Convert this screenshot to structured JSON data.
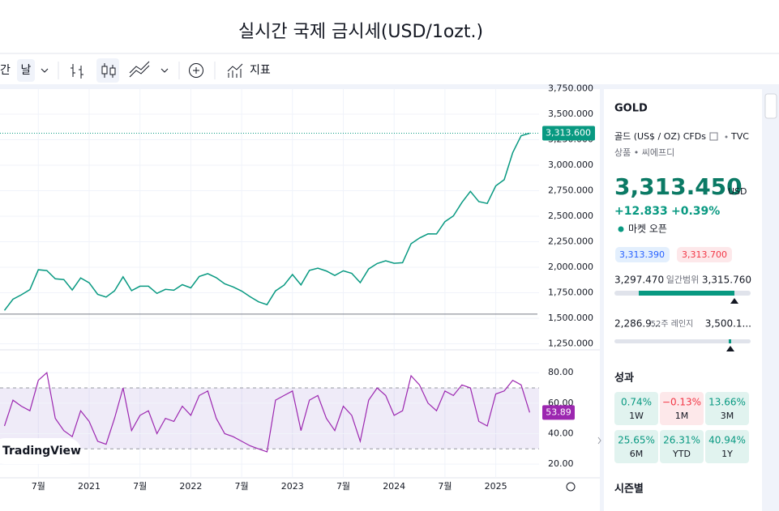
{
  "header": {
    "title": "실시간 국제 금시세(USD/1ozt.)"
  },
  "toolbar": {
    "interval_prefix": "간",
    "interval": "날",
    "indicators": "지표"
  },
  "chart_data": {
    "type": "line",
    "x": [
      "2020-03",
      "2020-04",
      "2020-05",
      "2020-06",
      "2020-07",
      "2020-08",
      "2020-09",
      "2020-10",
      "2020-11",
      "2020-12",
      "2021-01",
      "2021-02",
      "2021-03",
      "2021-04",
      "2021-05",
      "2021-06",
      "2021-07",
      "2021-08",
      "2021-09",
      "2021-10",
      "2021-11",
      "2021-12",
      "2022-01",
      "2022-02",
      "2022-03",
      "2022-04",
      "2022-05",
      "2022-06",
      "2022-07",
      "2022-08",
      "2022-09",
      "2022-10",
      "2022-11",
      "2022-12",
      "2023-01",
      "2023-02",
      "2023-03",
      "2023-04",
      "2023-05",
      "2023-06",
      "2023-07",
      "2023-08",
      "2023-09",
      "2023-10",
      "2023-11",
      "2023-12",
      "2024-01",
      "2024-02",
      "2024-03",
      "2024-04",
      "2024-05",
      "2024-06",
      "2024-07",
      "2024-08",
      "2024-09",
      "2024-10",
      "2024-11",
      "2024-12",
      "2025-01",
      "2025-02",
      "2025-03",
      "2025-04",
      "2025-05"
    ],
    "values": [
      1577,
      1686,
      1730,
      1781,
      1975,
      1967,
      1886,
      1879,
      1777,
      1895,
      1847,
      1734,
      1708,
      1769,
      1906,
      1770,
      1814,
      1814,
      1743,
      1783,
      1774,
      1829,
      1797,
      1909,
      1937,
      1897,
      1837,
      1807,
      1766,
      1711,
      1661,
      1633,
      1768,
      1824,
      1928,
      1827,
      1969,
      1990,
      1963,
      1919,
      1965,
      1940,
      1849,
      1983,
      2036,
      2063,
      2039,
      2044,
      2230,
      2286,
      2327,
      2326,
      2447,
      2503,
      2634,
      2744,
      2643,
      2625,
      2798,
      2858,
      3123,
      3289,
      3313.6
    ],
    "color": "#089981",
    "xticks": [
      {
        "value": "2020-07",
        "label": "7월"
      },
      {
        "value": "2021-01",
        "label": "2021"
      },
      {
        "value": "2021-07",
        "label": "7월"
      },
      {
        "value": "2022-01",
        "label": "2022"
      },
      {
        "value": "2022-07",
        "label": "7월"
      },
      {
        "value": "2023-01",
        "label": "2023"
      },
      {
        "value": "2023-07",
        "label": "7월"
      },
      {
        "value": "2024-01",
        "label": "2024"
      },
      {
        "value": "2024-07",
        "label": "7월"
      },
      {
        "value": "2025-01",
        "label": "2025"
      }
    ],
    "ylim": [
      1190,
      3786
    ],
    "yticks": [
      {
        "value": 1250,
        "label": "1,250.000"
      },
      {
        "value": 1500,
        "label": "1,500.000"
      },
      {
        "value": 1750,
        "label": "1,750.000"
      },
      {
        "value": 2000,
        "label": "2,000.000"
      },
      {
        "value": 2250,
        "label": "2,250.000"
      },
      {
        "value": 2500,
        "label": "2,500.000"
      },
      {
        "value": 2750,
        "label": "2,750.000"
      },
      {
        "value": 3000,
        "label": "3,000.000"
      },
      {
        "value": 3250,
        "label": "3,250.000"
      },
      {
        "value": 3500,
        "label": "3,500.000"
      },
      {
        "value": 3750,
        "label": "3,750.000"
      }
    ],
    "grid": true,
    "last_price": {
      "value": 3313.6,
      "label": "3,313.600"
    },
    "hline": 1540,
    "rsi": {
      "values": [
        45,
        62,
        58,
        55,
        75,
        80,
        50,
        42,
        38,
        55,
        48,
        35,
        33,
        50,
        70,
        42,
        52,
        55,
        40,
        50,
        48,
        58,
        52,
        65,
        68,
        50,
        40,
        38,
        35,
        32,
        30,
        28,
        62,
        65,
        68,
        42,
        62,
        65,
        50,
        42,
        58,
        52,
        35,
        62,
        70,
        65,
        52,
        55,
        78,
        72,
        60,
        55,
        68,
        65,
        72,
        70,
        48,
        45,
        66,
        68,
        75,
        72,
        53.89
      ],
      "color": "#9c27b0",
      "ylim": [
        11,
        95
      ],
      "yticks": [
        {
          "value": 20,
          "label": "20.00"
        },
        {
          "value": 40,
          "label": "40.00"
        },
        {
          "value": 60,
          "label": "60.00"
        },
        {
          "value": 80,
          "label": "80.00"
        }
      ],
      "band": [
        30,
        70
      ],
      "last": {
        "value": 53.89,
        "label": "53.89"
      }
    },
    "logo": "TradingView"
  },
  "panel": {
    "symbol": "GOLD",
    "description": "골드 (US$ / OZ) CFDs",
    "exchange": "TVC",
    "category": "상품 • 씨에프디",
    "price": "3,313.450",
    "currency": "USD",
    "change": "+12.833",
    "change_pct": "+0.39%",
    "status": "마켓 오픈",
    "bid": "3,313.390",
    "ask": "3,313.700",
    "day_low": "3,297.470",
    "day_range": "일간범위",
    "day_high": "3,315.760",
    "year_low": "2,286.9...",
    "year_range": "52주 레인지",
    "year_high": "3,500.1...",
    "performance_title": "성과",
    "performance": [
      {
        "value": "0.74%",
        "period": "1W"
      },
      {
        "value": "−0.13%",
        "period": "1M"
      },
      {
        "value": "13.66%",
        "period": "3M"
      },
      {
        "value": "25.65%",
        "period": "6M"
      },
      {
        "value": "26.31%",
        "period": "YTD"
      },
      {
        "value": "40.94%",
        "period": "1Y"
      }
    ],
    "seasonal_title": "시즌별"
  }
}
